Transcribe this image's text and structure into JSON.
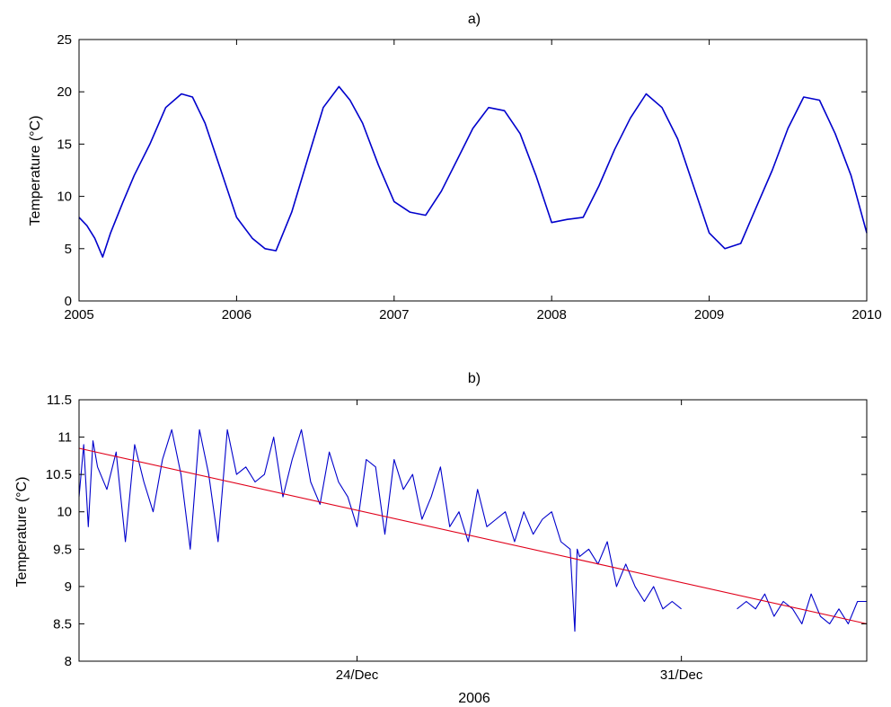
{
  "colors": {
    "series": "#0000cc",
    "trend": "#e0001a",
    "axis": "#000000"
  },
  "chart_data": [
    {
      "type": "line",
      "title": "a)",
      "xlabel": "",
      "ylabel": "Temperature (°C)",
      "xlim": [
        2005,
        2010
      ],
      "ylim": [
        0,
        25
      ],
      "xticks": [
        2005,
        2006,
        2007,
        2008,
        2009,
        2010
      ],
      "xtick_labels": [
        "2005",
        "2006",
        "2007",
        "2008",
        "2009",
        "2010"
      ],
      "yticks": [
        0,
        5,
        10,
        15,
        20,
        25
      ],
      "ytick_labels": [
        "0",
        "5",
        "10",
        "15",
        "20",
        "25"
      ],
      "grid": false,
      "series": [
        {
          "x": [
            2005.0,
            2005.05,
            2005.1,
            2005.15,
            2005.2,
            2005.28,
            2005.35,
            2005.45,
            2005.55,
            2005.65,
            2005.72,
            2005.8,
            2005.9,
            2006.0,
            2006.1,
            2006.18,
            2006.25,
            2006.35,
            2006.45,
            2006.55,
            2006.65,
            2006.72,
            2006.8,
            2006.9,
            2007.0,
            2007.1,
            2007.2,
            2007.3,
            2007.4,
            2007.5,
            2007.6,
            2007.7,
            2007.8,
            2007.9,
            2008.0,
            2008.1,
            2008.2,
            2008.3,
            2008.4,
            2008.5,
            2008.6,
            2008.7,
            2008.8,
            2008.9,
            2009.0,
            2009.1,
            2009.2,
            2009.3,
            2009.4,
            2009.5,
            2009.6,
            2009.7,
            2009.8,
            2009.9,
            2010.0
          ],
          "y": [
            8.0,
            7.2,
            6.0,
            4.2,
            6.5,
            9.5,
            12.0,
            15.0,
            18.5,
            19.8,
            19.5,
            17.0,
            12.5,
            8.0,
            6.0,
            5.0,
            4.8,
            8.5,
            13.5,
            18.5,
            20.5,
            19.2,
            17.0,
            13.0,
            9.5,
            8.5,
            8.2,
            10.5,
            13.5,
            16.5,
            18.5,
            18.2,
            16.0,
            12.0,
            7.5,
            7.8,
            8.0,
            11.0,
            14.5,
            17.5,
            19.8,
            18.5,
            15.5,
            11.0,
            6.5,
            5.0,
            5.5,
            9.0,
            12.5,
            16.5,
            19.5,
            19.2,
            16.0,
            12.0,
            6.5
          ]
        }
      ]
    },
    {
      "type": "line",
      "title": "b)",
      "xlabel": "2006",
      "ylabel": "Temperature (°C)",
      "xlim": [
        18.0,
        35.0
      ],
      "ylim": [
        8,
        11.5
      ],
      "xticks": [
        24,
        31
      ],
      "xtick_labels": [
        "24/Dec",
        "31/Dec"
      ],
      "yticks": [
        8,
        8.5,
        9,
        9.5,
        10,
        10.5,
        11,
        11.5
      ],
      "ytick_labels": [
        "8",
        "8.5",
        "9",
        "9.5",
        "10",
        "10.5",
        "11",
        "11.5"
      ],
      "grid": false,
      "series": [
        {
          "x": [
            18.0,
            18.1,
            18.2,
            18.3,
            18.4,
            18.6,
            18.8,
            19.0,
            19.2,
            19.4,
            19.6,
            19.8,
            20.0,
            20.2,
            20.4,
            20.6,
            20.8,
            21.0,
            21.2,
            21.4,
            21.6,
            21.8,
            22.0,
            22.2,
            22.4,
            22.6,
            22.8,
            23.0,
            23.2,
            23.4,
            23.6,
            23.8,
            24.0,
            24.2,
            24.4,
            24.6,
            24.8,
            25.0,
            25.2,
            25.4,
            25.6,
            25.8,
            26.0,
            26.2,
            26.4,
            26.6,
            26.8,
            27.0,
            27.2,
            27.4,
            27.6,
            27.8,
            28.0,
            28.2,
            28.4,
            28.6,
            28.7,
            28.75,
            28.8,
            29.0,
            29.2,
            29.4,
            29.6,
            29.8,
            30.0,
            30.2,
            30.4,
            30.6,
            30.8,
            31.0,
            null,
            32.2,
            32.4,
            32.6,
            32.8,
            33.0,
            33.2,
            33.4,
            33.6,
            33.8,
            34.0,
            34.2,
            34.4,
            34.6,
            34.8,
            35.0
          ],
          "y": [
            10.2,
            10.9,
            9.8,
            10.95,
            10.6,
            10.3,
            10.8,
            9.6,
            10.9,
            10.4,
            10.0,
            10.7,
            11.1,
            10.5,
            9.5,
            11.1,
            10.5,
            9.6,
            11.1,
            10.5,
            10.6,
            10.4,
            10.5,
            11.0,
            10.2,
            10.7,
            11.1,
            10.4,
            10.1,
            10.8,
            10.4,
            10.2,
            9.8,
            10.7,
            10.6,
            9.7,
            10.7,
            10.3,
            10.5,
            9.9,
            10.2,
            10.6,
            9.8,
            10.0,
            9.6,
            10.3,
            9.8,
            9.9,
            10.0,
            9.6,
            10.0,
            9.7,
            9.9,
            10.0,
            9.6,
            9.5,
            8.4,
            9.5,
            9.4,
            9.5,
            9.3,
            9.6,
            9.0,
            9.3,
            9.0,
            8.8,
            9.0,
            8.7,
            8.8,
            8.7,
            null,
            8.7,
            8.8,
            8.7,
            8.9,
            8.6,
            8.8,
            8.7,
            8.5,
            8.9,
            8.6,
            8.5,
            8.7,
            8.5,
            8.8,
            8.8
          ]
        },
        {
          "x": [
            18.0,
            35.0
          ],
          "y": [
            10.85,
            8.5
          ]
        }
      ]
    }
  ]
}
